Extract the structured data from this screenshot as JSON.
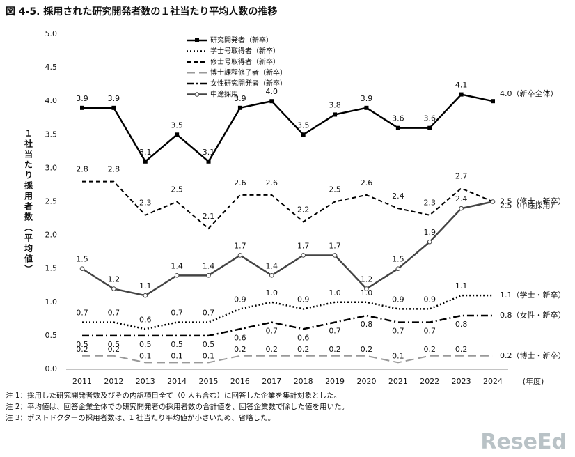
{
  "chart_data": {
    "type": "line",
    "title": "図 4-5. 採用された研究開発者数の１社当たり平均人数の推移",
    "y_label": "１社当たり採用者数（平均値）",
    "x_label": "(年度)",
    "categories": [
      "2011",
      "2012",
      "2013",
      "2014",
      "2015",
      "2016",
      "2017",
      "2018",
      "2019",
      "2020",
      "2021",
      "2022",
      "2023",
      "2024"
    ],
    "ylim": [
      0,
      5
    ],
    "yticks": [
      {
        "value": 0,
        "label": "0.0"
      },
      {
        "value": 0.5,
        "label": "0.5"
      },
      {
        "value": 1,
        "label": "1.0"
      },
      {
        "value": 1.5,
        "label": "1.5"
      },
      {
        "value": 2,
        "label": "2.0"
      },
      {
        "value": 2.5,
        "label": "2.5"
      },
      {
        "value": 3,
        "label": "3.0"
      },
      {
        "value": 3.5,
        "label": "3.5"
      },
      {
        "value": 4,
        "label": "4.0"
      },
      {
        "value": 4.5,
        "label": "4.5"
      },
      {
        "value": 5,
        "label": "5.0"
      }
    ],
    "legend": "top",
    "series": [
      {
        "name": "研究開発者（新卒）",
        "color": "#000000",
        "dash": "solid",
        "marker": "square",
        "values": [
          3.9,
          3.9,
          3.1,
          3.5,
          3.1,
          3.9,
          4.0,
          3.5,
          3.8,
          3.9,
          3.6,
          3.6,
          4.1,
          4.0
        ],
        "value_labels": [
          "3.9",
          "3.9",
          "3.1",
          "3.5",
          "3.1",
          "3.9",
          "4.0",
          "3.5",
          "3.8",
          "3.9",
          "3.6",
          "3.6",
          "4.1",
          "4.0（新卒全体）"
        ]
      },
      {
        "name": "学士号取得者（新卒）",
        "color": "#000000",
        "dash": "dotted",
        "marker": "none",
        "values": [
          0.7,
          0.7,
          0.6,
          0.7,
          0.7,
          0.9,
          1.0,
          0.9,
          1.0,
          1.0,
          0.9,
          0.9,
          1.1,
          1.1
        ],
        "value_labels": [
          "0.7",
          "0.7",
          "0.6",
          "0.7",
          "0.7",
          "0.9",
          "1.0",
          "0.9",
          "1.0",
          "1.0",
          "0.9",
          "0.9",
          "1.1",
          "1.1（学士・新卒）"
        ]
      },
      {
        "name": "修士号取得者（新卒）",
        "color": "#000000",
        "dash": "dashed",
        "marker": "none",
        "values": [
          2.8,
          2.8,
          2.3,
          2.5,
          2.1,
          2.6,
          2.6,
          2.2,
          2.5,
          2.6,
          2.4,
          2.3,
          2.7,
          2.5
        ],
        "value_labels": [
          "2.8",
          "2.8",
          "2.3",
          "2.5",
          "2.1",
          "2.6",
          "2.6",
          "2.2",
          "2.5",
          "2.6",
          "2.4",
          "2.3",
          "2.7",
          "2.5（修士・新卒）"
        ]
      },
      {
        "name": "博士課程修了者（新卒）",
        "color": "#999999",
        "dash": "longdash",
        "marker": "none",
        "values": [
          0.2,
          0.2,
          0.1,
          0.1,
          0.1,
          0.2,
          0.2,
          0.2,
          0.2,
          0.2,
          0.1,
          0.2,
          0.2,
          0.2
        ],
        "value_labels": [
          "0.2",
          "0.2",
          "0.1",
          "0.1",
          "0.1",
          "0.2",
          "0.2",
          "0.2",
          "0.2",
          "0.2",
          "0.1",
          "0.2",
          "0.2",
          "0.2（博士・新卒）"
        ]
      },
      {
        "name": "女性研究開発者（新卒）",
        "color": "#000000",
        "dash": "dashdot",
        "marker": "none",
        "values": [
          0.5,
          0.5,
          0.5,
          0.5,
          0.5,
          0.6,
          0.7,
          0.6,
          0.7,
          0.8,
          0.7,
          0.7,
          0.8,
          0.8
        ],
        "value_labels": [
          "0.5",
          "0.5",
          "0.5",
          "0.5",
          "0.5",
          "0.6",
          "0.7",
          "0.6",
          "0.7",
          "0.8",
          "0.7",
          "0.7",
          "0.8",
          "0.8（女性・新卒）"
        ]
      },
      {
        "name": "中途採用",
        "color": "#444444",
        "dash": "solid",
        "marker": "circle",
        "values": [
          1.5,
          1.2,
          1.1,
          1.4,
          1.4,
          1.7,
          1.4,
          1.7,
          1.7,
          1.2,
          1.5,
          1.9,
          2.4,
          2.5
        ],
        "value_labels": [
          "1.5",
          "1.2",
          "1.1",
          "1.4",
          "1.4",
          "1.7",
          "1.4",
          "1.7",
          "1.7",
          "1.2",
          "1.5",
          "1.9",
          "2.4",
          "2.5（中途採用）"
        ]
      }
    ],
    "notes": [
      "注 1：採用した研究開発者数及びその内訳項目全て（0 人も含む）に回答した企業を集計対象とした。",
      "注 2：平均値は、回答企業全体での研究開発者の採用者数の合計値を、回答企業数で除した値を用いた。",
      "注 3：ポストドクターの採用者数は、1 社当たり平均値が小さいため、省略した。"
    ],
    "watermark": "ReseEd"
  }
}
